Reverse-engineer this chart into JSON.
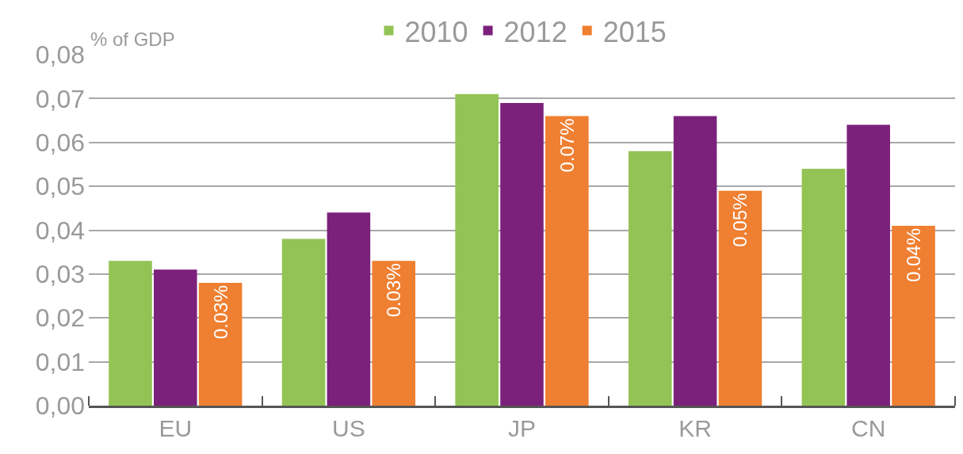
{
  "chart_data": {
    "type": "bar",
    "ylabel": "% of GDP",
    "categories": [
      "EU",
      "US",
      "JP",
      "KR",
      "CN"
    ],
    "series": [
      {
        "name": "2010",
        "color": "#93c354",
        "values": [
          0.033,
          0.038,
          0.071,
          0.058,
          0.054
        ]
      },
      {
        "name": "2012",
        "color": "#7b217c",
        "values": [
          0.031,
          0.044,
          0.069,
          0.066,
          0.064
        ]
      },
      {
        "name": "2015",
        "color": "#ef7f31",
        "values": [
          0.028,
          0.033,
          0.066,
          0.049,
          0.041
        ],
        "value_labels": [
          "0.03%",
          "0.03%",
          "0.07%",
          "0.05%",
          "0.04%"
        ]
      }
    ],
    "ylim": [
      0,
      0.08
    ],
    "yticks": [
      {
        "value": 0,
        "label": "0,00"
      },
      {
        "value": 0.01,
        "label": "0,01"
      },
      {
        "value": 0.02,
        "label": "0,02"
      },
      {
        "value": 0.03,
        "label": "0,03"
      },
      {
        "value": 0.04,
        "label": "0,04"
      },
      {
        "value": 0.05,
        "label": "0,05"
      },
      {
        "value": 0.06,
        "label": "0,06"
      },
      {
        "value": 0.07,
        "label": "0,07"
      },
      {
        "value": 0.08,
        "label": "0,08"
      }
    ],
    "grid": "y",
    "legend": "top"
  }
}
